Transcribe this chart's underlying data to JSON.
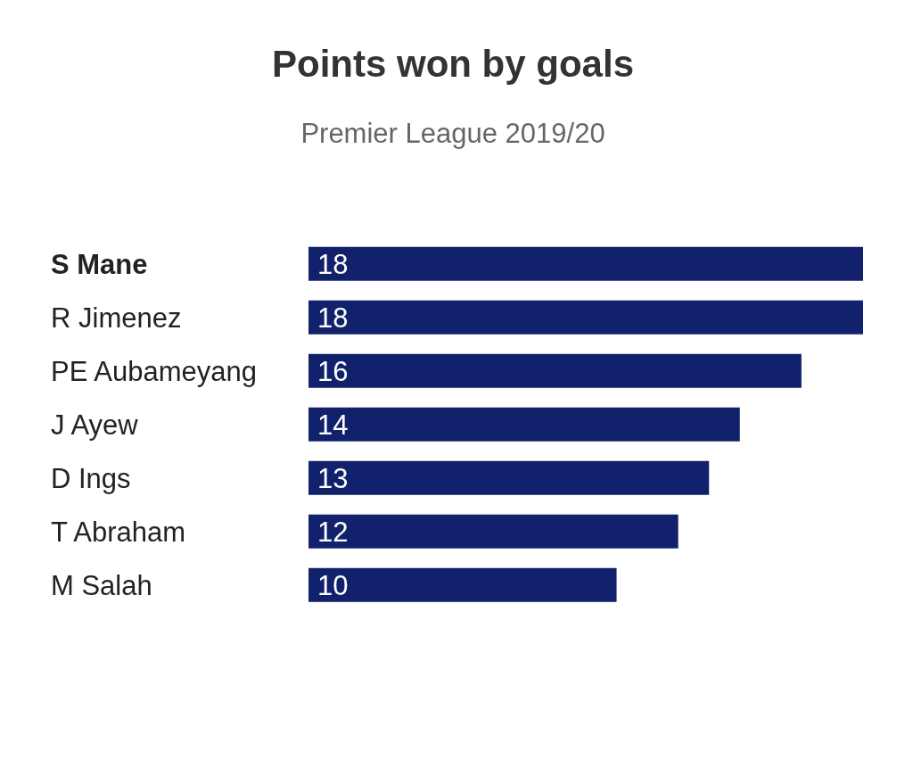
{
  "chart_data": {
    "type": "bar",
    "orientation": "horizontal",
    "title": "Points won by goals",
    "subtitle": "Premier League 2019/20",
    "categories": [
      "S Mane",
      "R Jimenez",
      "PE Aubameyang",
      "J Ayew",
      "D Ings",
      "T Abraham",
      "M Salah"
    ],
    "values": [
      18,
      18,
      16,
      14,
      13,
      12,
      10
    ],
    "color": "#12216b",
    "data_labels": true,
    "grid": false,
    "legend": false
  }
}
